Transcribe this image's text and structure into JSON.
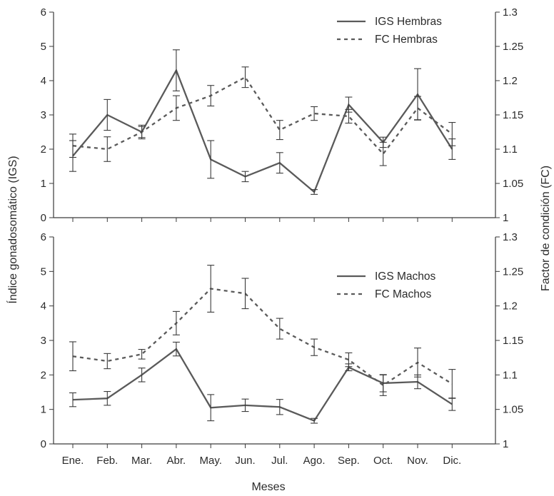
{
  "chart_data": [
    {
      "type": "line",
      "categories": [
        "Ene.",
        "Feb.",
        "Mar.",
        "Abr.",
        "May.",
        "Jun.",
        "Jul.",
        "Ago.",
        "Sep.",
        "Oct.",
        "Nov.",
        "Dic."
      ],
      "ylim_left": [
        0,
        6
      ],
      "yticks_left": [
        "0",
        "1",
        "2",
        "3",
        "4",
        "5",
        "6"
      ],
      "ylim_right": [
        1,
        1.3
      ],
      "yticks_right": [
        "1",
        "1.05",
        "1.1",
        "1.15",
        "1.2",
        "1.25",
        "1.3"
      ],
      "legend_position": "top-right",
      "series": [
        {
          "name": "IGS Hembras",
          "axis": "left",
          "style": "solid",
          "values": [
            1.8,
            3.0,
            2.5,
            4.3,
            1.7,
            1.2,
            1.6,
            0.75,
            3.3,
            2.2,
            3.6,
            2.0
          ],
          "error": [
            0.45,
            0.45,
            0.2,
            0.6,
            0.55,
            0.15,
            0.3,
            0.07,
            0.22,
            0.15,
            0.75,
            0.3
          ]
        },
        {
          "name": "FC Hembras",
          "axis": "right",
          "style": "dashed",
          "values": [
            1.105,
            1.1,
            1.125,
            1.16,
            1.178,
            1.205,
            1.128,
            1.152,
            1.148,
            1.093,
            1.16,
            1.122
          ],
          "error": [
            0.017,
            0.018,
            0.008,
            0.018,
            0.015,
            0.015,
            0.014,
            0.01,
            0.01,
            0.017,
            0.017,
            0.017
          ]
        }
      ]
    },
    {
      "type": "line",
      "categories": [
        "Ene.",
        "Feb.",
        "Mar.",
        "Abr.",
        "May.",
        "Jun.",
        "Jul.",
        "Ago.",
        "Sep.",
        "Oct.",
        "Nov.",
        "Dic."
      ],
      "ylim_left": [
        0,
        6
      ],
      "yticks_left": [
        "0",
        "1",
        "2",
        "3",
        "4",
        "5",
        "6"
      ],
      "ylim_right": [
        1,
        1.3
      ],
      "yticks_right": [
        "1",
        "1.05",
        "1.1",
        "1.15",
        "1.2",
        "1.25",
        "1.3"
      ],
      "legend_position": "top-right",
      "series": [
        {
          "name": "IGS Machos",
          "axis": "left",
          "style": "solid",
          "values": [
            1.28,
            1.32,
            2.0,
            2.75,
            1.05,
            1.12,
            1.07,
            0.67,
            2.22,
            1.76,
            1.8,
            1.15
          ],
          "error": [
            0.2,
            0.2,
            0.2,
            0.2,
            0.38,
            0.18,
            0.22,
            0.07,
            0.1,
            0.25,
            0.2,
            0.18
          ]
        },
        {
          "name": "FC Machos",
          "axis": "right",
          "style": "dashed",
          "values": [
            1.127,
            1.12,
            1.13,
            1.175,
            1.225,
            1.218,
            1.167,
            1.14,
            1.122,
            1.085,
            1.118,
            1.087
          ],
          "error": [
            0.021,
            0.011,
            0.007,
            0.017,
            0.034,
            0.022,
            0.015,
            0.012,
            0.01,
            0.015,
            0.021,
            0.021
          ]
        }
      ]
    }
  ],
  "labels": {
    "ylabel_left": "Índice gonadosomático (IGS)",
    "ylabel_right": "Factor de condición (FC)",
    "xlabel": "Meses"
  },
  "colors": {
    "line": "#5a5a5a",
    "axis": "#3a3a3a",
    "text": "#2b2b2b"
  }
}
